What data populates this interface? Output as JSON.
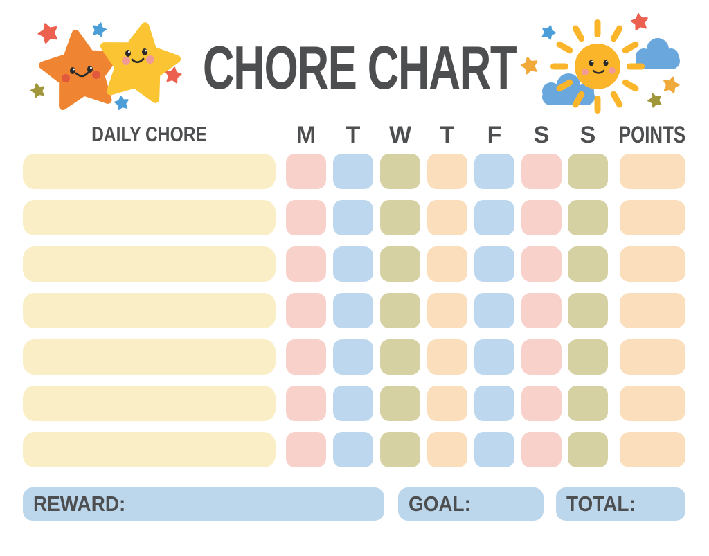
{
  "title": "CHORE CHART",
  "header": {
    "chore_column_label": "DAILY CHORE",
    "day_labels": [
      "M",
      "T",
      "W",
      "T",
      "F",
      "S",
      "S"
    ],
    "points_label": "POINTS"
  },
  "grid": {
    "rows": 7,
    "chore_bar_color": "cream",
    "day_cell_colors": [
      "pink",
      "blue",
      "olive",
      "peach",
      "blue",
      "pink",
      "olive"
    ],
    "points_cell_color": "peach"
  },
  "footer": {
    "reward_label": "REWARD:",
    "goal_label": "GOAL:",
    "total_label": "TOTAL:"
  },
  "decorations": {
    "left_icon": "smiling-stars",
    "right_icon": "smiling-sun-with-clouds"
  },
  "colors": {
    "text": "#4D4E50",
    "cream": "#FAEEC6",
    "pink": "#F8D1CB",
    "blue": "#BDD8EE",
    "olive": "#D5D1A2",
    "peach": "#FBDEBC",
    "footer_field": "#BCD6EC",
    "star_orange": "#EF8532",
    "star_yellow": "#FBC433",
    "sun": "#FBB52B",
    "cloud": "#6AA7DC",
    "mini_red": "#EC6050",
    "mini_blue": "#4C9ED9",
    "mini_olive": "#A0973A",
    "mini_yellow": "#F0A93B",
    "face": "#2A2A2A",
    "cheek_red": "#E2583C",
    "cheek_pink": "#F09B93"
  }
}
